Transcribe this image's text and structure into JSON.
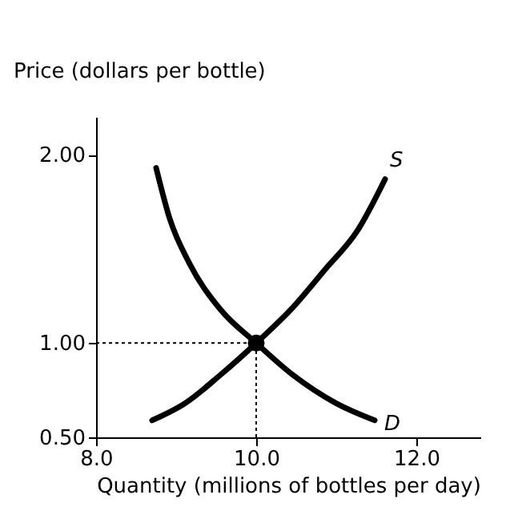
{
  "chart_data": {
    "type": "line",
    "xlabel": "Quantity (millions of bottles per day)",
    "ylabel": "Price (dollars per bottle)",
    "xlim": [
      8.0,
      12.8
    ],
    "xticks": [
      {
        "value": 8,
        "label": "8.0"
      },
      {
        "value": 10,
        "label": "10.0"
      },
      {
        "value": 12,
        "label": "12.0"
      }
    ],
    "ylim": [
      0.5,
      2.2
    ],
    "yticks": [
      {
        "value": 0.5,
        "label": "0.50"
      },
      {
        "value": 1,
        "label": "1.00"
      },
      {
        "value": 2,
        "label": "2.00"
      }
    ],
    "grid": false,
    "marker": "none",
    "line_style": "solid",
    "series": [
      {
        "name": "S",
        "color": "#000000",
        "x": [
          8.7,
          9.11,
          9.55,
          10.0,
          10.46,
          10.86,
          11.27,
          11.61
        ],
        "values": [
          0.59,
          0.68,
          0.83,
          1.0,
          1.19,
          1.39,
          1.6,
          1.87
        ]
      },
      {
        "name": "D",
        "color": "#000000",
        "x": [
          8.75,
          8.92,
          9.17,
          9.55,
          10.0,
          10.46,
          11.0,
          11.48
        ],
        "values": [
          1.93,
          1.66,
          1.42,
          1.18,
          1.0,
          0.83,
          0.68,
          0.59
        ]
      },
      {
        "type": "scatter",
        "marker": "circle",
        "color": "#000000",
        "x": [
          10.0
        ],
        "values": [
          1.0
        ]
      }
    ],
    "ref_lines": [
      {
        "axis": "x",
        "value": 10.0,
        "line_style": "dotted",
        "color": "#000000"
      },
      {
        "axis": "y",
        "value": 1.0,
        "line_style": "dotted",
        "color": "#000000"
      }
    ]
  }
}
